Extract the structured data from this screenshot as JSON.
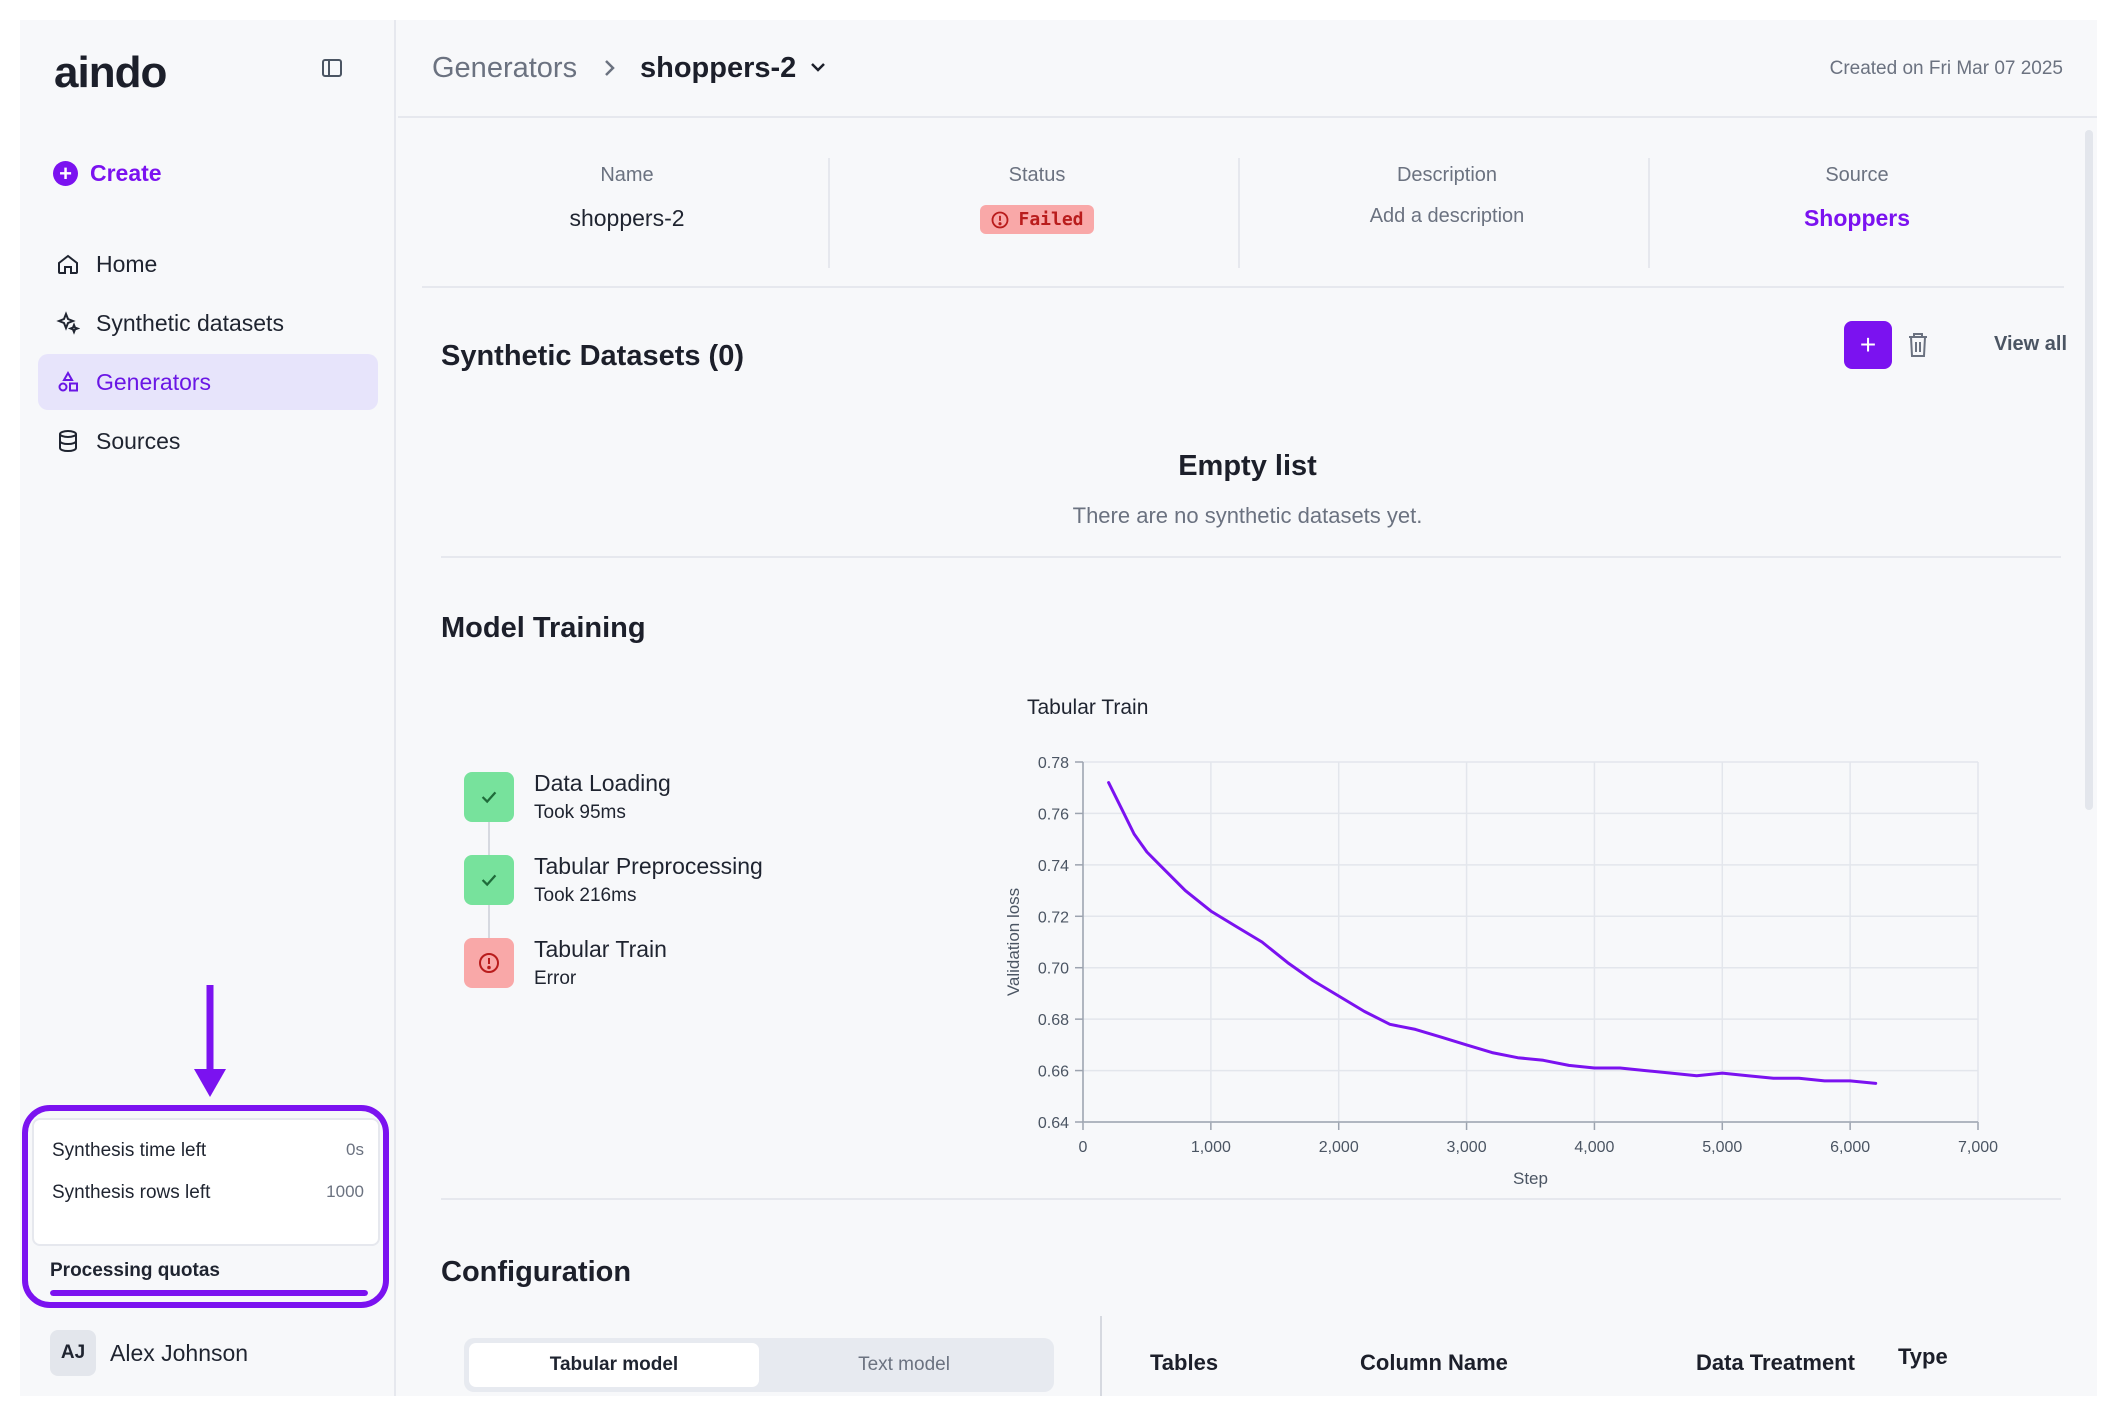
{
  "app": {
    "logo": "aindo"
  },
  "sidebar": {
    "create_label": "Create",
    "items": [
      {
        "label": "Home",
        "icon": "home-icon",
        "active": false
      },
      {
        "label": "Synthetic datasets",
        "icon": "sparkles-icon",
        "active": false
      },
      {
        "label": "Generators",
        "icon": "shapes-icon",
        "active": true
      },
      {
        "label": "Sources",
        "icon": "database-icon",
        "active": false
      }
    ],
    "quotas": {
      "time_label": "Synthesis time left",
      "time_value": "0s",
      "rows_label": "Synthesis rows left",
      "rows_value": "1000",
      "processing_label": "Processing quotas",
      "processing_fraction": 1.0
    },
    "user": {
      "initials": "AJ",
      "name": "Alex Johnson"
    }
  },
  "header": {
    "breadcrumb_root": "Generators",
    "breadcrumb_current": "shoppers-2",
    "created": "Created on Fri Mar 07 2025"
  },
  "meta": {
    "name_label": "Name",
    "name_value": "shoppers-2",
    "status_label": "Status",
    "status_value": "Failed",
    "description_label": "Description",
    "description_value": "Add a description",
    "source_label": "Source",
    "source_value": "Shoppers"
  },
  "synthetic_datasets": {
    "title": "Synthetic Datasets (0)",
    "view_all": "View all",
    "empty_title": "Empty list",
    "empty_sub": "There are no synthetic datasets yet."
  },
  "model_training": {
    "title": "Model Training",
    "steps": [
      {
        "name": "Data Loading",
        "sub": "Took 95ms",
        "state": "ok"
      },
      {
        "name": "Tabular Preprocessing",
        "sub": "Took 216ms",
        "state": "ok"
      },
      {
        "name": "Tabular Train",
        "sub": "Error",
        "state": "error"
      }
    ]
  },
  "chart_data": {
    "type": "line",
    "title": "Tabular Train",
    "xlabel": "Step",
    "ylabel": "Validation loss",
    "xlim": [
      0,
      7000
    ],
    "ylim": [
      0.64,
      0.78
    ],
    "xticks": [
      0,
      1000,
      2000,
      3000,
      4000,
      5000,
      6000,
      7000
    ],
    "xtick_labels": [
      "0",
      "1,000",
      "2,000",
      "3,000",
      "4,000",
      "5,000",
      "6,000",
      "7,000"
    ],
    "yticks": [
      0.64,
      0.66,
      0.68,
      0.7,
      0.72,
      0.74,
      0.76,
      0.78
    ],
    "ytick_labels": [
      "0.64",
      "0.66",
      "0.68",
      "0.70",
      "0.72",
      "0.74",
      "0.76",
      "0.78"
    ],
    "grid": true,
    "color": "#7b12f0",
    "series": [
      {
        "x": [
          200,
          300,
          400,
          500,
          600,
          800,
          1000,
          1200,
          1400,
          1600,
          1800,
          2000,
          2200,
          2400,
          2600,
          2800,
          3000,
          3200,
          3400,
          3600,
          3800,
          4000,
          4200,
          4400,
          4600,
          4800,
          5000,
          5200,
          5400,
          5600,
          5800,
          6000,
          6200
        ],
        "y": [
          0.772,
          0.762,
          0.752,
          0.745,
          0.74,
          0.73,
          0.722,
          0.716,
          0.71,
          0.702,
          0.695,
          0.689,
          0.683,
          0.678,
          0.676,
          0.673,
          0.67,
          0.667,
          0.665,
          0.664,
          0.662,
          0.661,
          0.661,
          0.66,
          0.659,
          0.658,
          0.659,
          0.658,
          0.657,
          0.657,
          0.656,
          0.656,
          0.655
        ]
      }
    ]
  },
  "configuration": {
    "title": "Configuration",
    "tabs": [
      "Tabular model",
      "Text model"
    ],
    "active_tab": 0,
    "columns": [
      "Tables",
      "Column Name",
      "Data Treatment",
      "Type"
    ]
  },
  "colors": {
    "accent": "#7b12f0",
    "success": "#77e29c",
    "error": "#f9a8a8"
  }
}
